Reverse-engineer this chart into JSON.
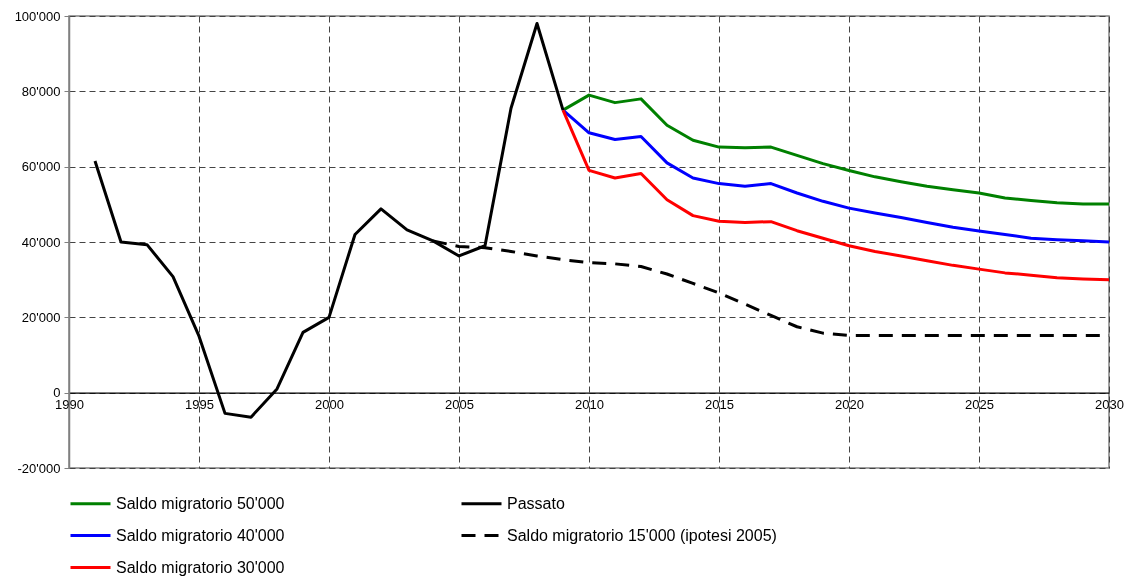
{
  "chart_data": {
    "type": "line",
    "series": [
      {
        "name": "Saldo migratorio 50'000",
        "color": "#008000",
        "line_style": "solid",
        "x": [
          2009,
          2010,
          2011,
          2012,
          2013,
          2014,
          2015,
          2016,
          2017,
          2018,
          2019,
          2020,
          2021,
          2022,
          2023,
          2024,
          2025,
          2026,
          2027,
          2028,
          2029,
          2030
        ],
        "values": [
          75000,
          79000,
          77000,
          78000,
          71000,
          67000,
          65200,
          65000,
          65200,
          63000,
          60800,
          59000,
          57300,
          56000,
          54800,
          53900,
          53000,
          51700,
          51000,
          50400,
          50100,
          50100
        ]
      },
      {
        "name": "Saldo migratorio 40'000",
        "color": "#0000ff",
        "line_style": "solid",
        "x": [
          2009,
          2010,
          2011,
          2012,
          2013,
          2014,
          2015,
          2016,
          2017,
          2018,
          2019,
          2020,
          2021,
          2022,
          2023,
          2024,
          2025,
          2026,
          2027,
          2028,
          2029,
          2030
        ],
        "values": [
          75000,
          69000,
          67200,
          68000,
          61000,
          57000,
          55500,
          54800,
          55500,
          53000,
          50800,
          49000,
          47700,
          46500,
          45200,
          43900,
          42900,
          42000,
          41000,
          40600,
          40300,
          40000
        ]
      },
      {
        "name": "Saldo migratorio 30'000",
        "color": "#ff0000",
        "line_style": "solid",
        "x": [
          2009,
          2010,
          2011,
          2012,
          2013,
          2014,
          2015,
          2016,
          2017,
          2018,
          2019,
          2020,
          2021,
          2022,
          2023,
          2024,
          2025,
          2026,
          2027,
          2028,
          2029,
          2030
        ],
        "values": [
          75000,
          59000,
          57000,
          58200,
          51200,
          47000,
          45500,
          45200,
          45400,
          43000,
          41000,
          39000,
          37500,
          36300,
          35000,
          33800,
          32800,
          31800,
          31200,
          30500,
          30200,
          30000
        ]
      },
      {
        "name": "Passato",
        "color": "#000000",
        "line_style": "solid",
        "x": [
          1991,
          1992,
          1993,
          1994,
          1995,
          1996,
          1997,
          1998,
          1999,
          2000,
          2001,
          2002,
          2003,
          2004,
          2005,
          2006,
          2007,
          2008,
          2009
        ],
        "values": [
          61500,
          40000,
          39300,
          30800,
          15000,
          -5500,
          -6500,
          1000,
          16000,
          20000,
          42000,
          48800,
          43200,
          40300,
          36300,
          39000,
          75500,
          98000,
          75000
        ]
      },
      {
        "name": "Saldo migratorio 15'000 (ipotesi 2005)",
        "color": "#000000",
        "line_style": "dashed",
        "x": [
          2004,
          2005,
          2006,
          2007,
          2008,
          2009,
          2010,
          2011,
          2012,
          2013,
          2014,
          2015,
          2016,
          2017,
          2018,
          2019,
          2020,
          2021,
          2022,
          2023,
          2024,
          2025,
          2026,
          2027,
          2028,
          2029,
          2030
        ],
        "values": [
          40300,
          38800,
          38500,
          37500,
          36300,
          35300,
          34500,
          34200,
          33500,
          31500,
          29000,
          26500,
          23500,
          20500,
          17500,
          15800,
          15200,
          15200,
          15200,
          15200,
          15200,
          15200,
          15200,
          15200,
          15200,
          15200,
          15200
        ]
      }
    ],
    "xlim": [
      1990,
      2030
    ],
    "xticks": [
      1990,
      1995,
      2000,
      2005,
      2010,
      2015,
      2020,
      2025,
      2030
    ],
    "ylim": [
      -20000,
      100000
    ],
    "yticks": [
      {
        "value": -20000,
        "label": "-20'000"
      },
      {
        "value": 0,
        "label": "0"
      },
      {
        "value": 20000,
        "label": "20'000"
      },
      {
        "value": 40000,
        "label": "40'000"
      },
      {
        "value": 60000,
        "label": "60'000"
      },
      {
        "value": 80000,
        "label": "80'000"
      },
      {
        "value": 100000,
        "label": "100'000"
      }
    ],
    "grid": true,
    "legend": "bottom",
    "marker": "none"
  }
}
